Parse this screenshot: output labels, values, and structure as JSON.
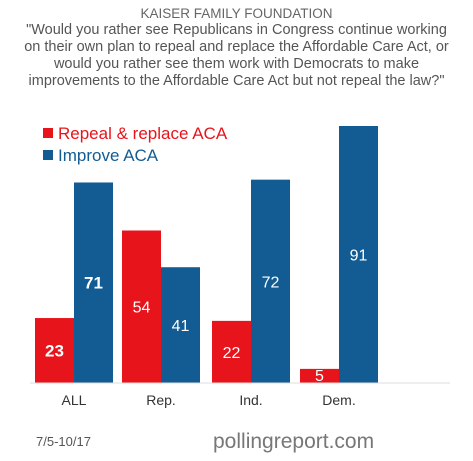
{
  "header": {
    "source": "KAISER FAMILY FOUNDATION",
    "question": "\"Would you rather see Republicans in Congress continue working on their own plan to repeal and replace the Affordable Care Act, or would you rather see them work with Democrats to make improvements to the Affordable Care Act but not repeal the law?\""
  },
  "footer": {
    "date": "7/5-10/17",
    "site": "pollingreport.com"
  },
  "colors": {
    "repeal": "#e8141b",
    "improve": "#135c93"
  },
  "chart_data": {
    "type": "bar",
    "categories": [
      "ALL",
      "Rep.",
      "Ind.",
      "Dem."
    ],
    "series": [
      {
        "name": "Repeal & replace ACA",
        "values": [
          23,
          54,
          22,
          5
        ]
      },
      {
        "name": "Improve ACA",
        "values": [
          71,
          41,
          72,
          91
        ]
      }
    ],
    "ylim": [
      0,
      91
    ],
    "grid": false,
    "legend": "top-left"
  }
}
